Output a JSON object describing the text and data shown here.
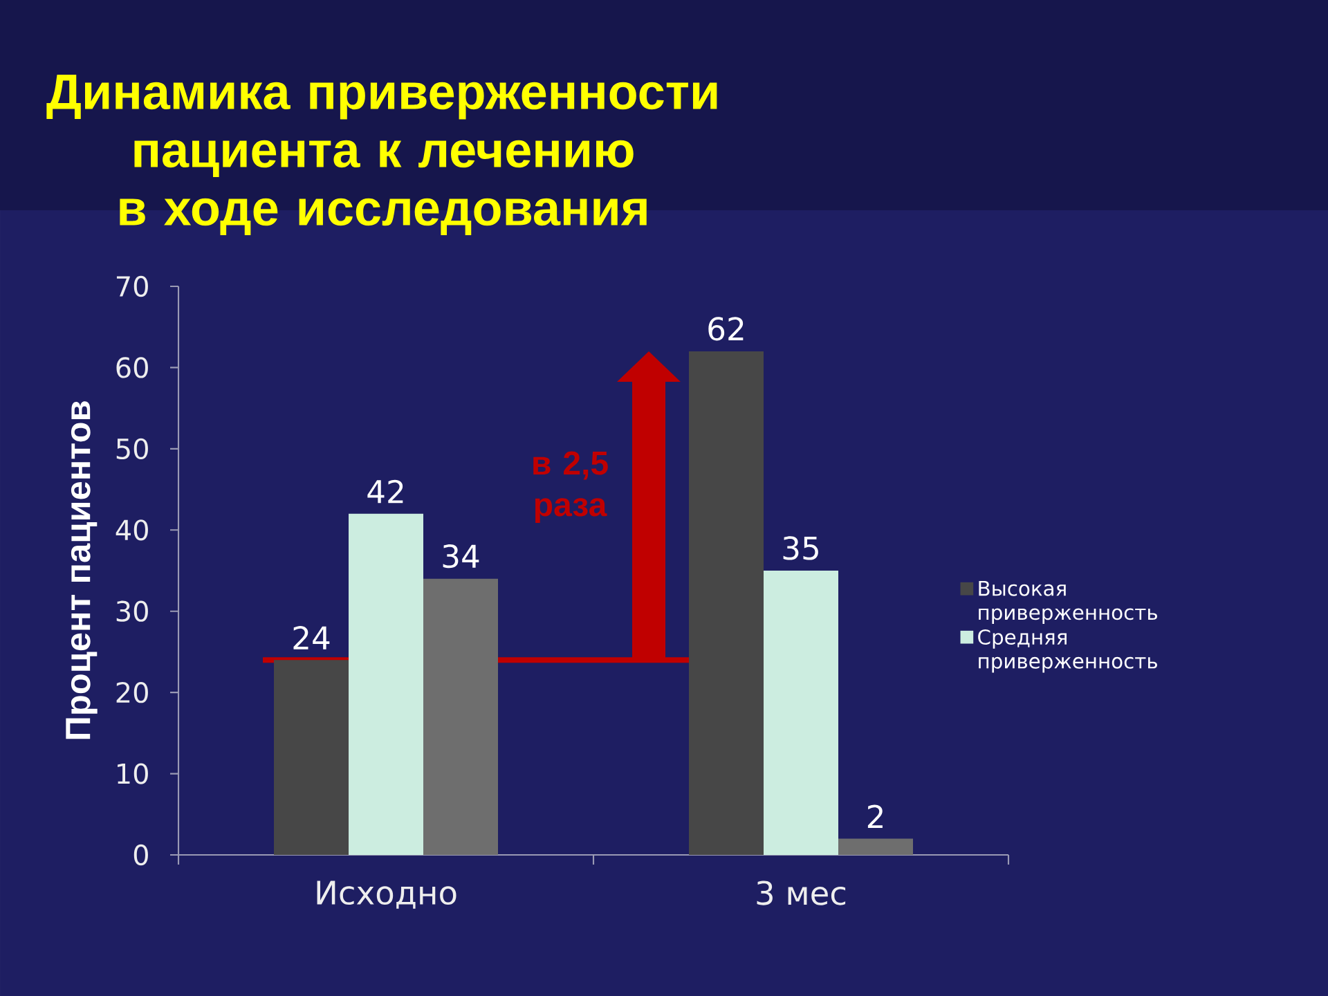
{
  "chart_data": {
    "type": "bar",
    "title": "Динамика приверженности\nпациента к лечению\nв ходе исследования",
    "ylabel": "Процент пациентов",
    "categories": [
      "Исходно",
      "3 мес"
    ],
    "series": [
      {
        "name": "Высокая приверженность",
        "color": "#474747",
        "values": [
          24,
          62
        ]
      },
      {
        "name": "Средняя приверженность",
        "color": "#ccede0",
        "values": [
          42,
          35
        ]
      },
      {
        "color": "#6e6e6e",
        "values": [
          34,
          2
        ]
      }
    ],
    "ylim": [
      0,
      70
    ],
    "yticks": [
      0,
      10,
      20,
      30,
      40,
      50,
      60,
      70
    ],
    "data_labels": true,
    "legend": "right",
    "ref_lines": [
      {
        "axis": "y",
        "value": 24,
        "label": "в 2,5 раза",
        "color": "#c00000"
      }
    ]
  }
}
